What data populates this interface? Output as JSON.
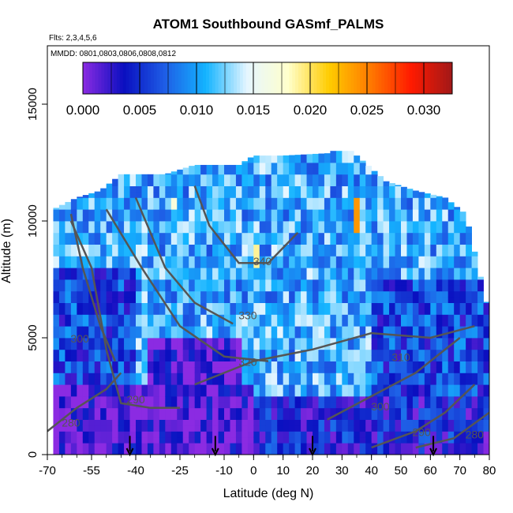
{
  "chart_data": {
    "type": "heatmap",
    "title": "ATOM1 Southbound GASmf_PALMS",
    "flights_note": "Flts: 2,3,4,5,6",
    "dates_note": "MMDD: 0801,0803,0806,0808,0812",
    "xlabel": "Latitude (deg N)",
    "ylabel": "Altitude (m)",
    "xlim": [
      -70,
      80
    ],
    "ylim": [
      0,
      17500
    ],
    "x_ticks": [
      -70,
      -55,
      -40,
      -25,
      -10,
      0,
      10,
      20,
      30,
      40,
      50,
      60,
      70,
      80
    ],
    "y_ticks": [
      0,
      5000,
      10000,
      15000
    ],
    "colorbar": {
      "range": [
        0.0,
        0.0325
      ],
      "ticks": [
        "0.000",
        "0.005",
        "0.010",
        "0.015",
        "0.020",
        "0.025",
        "0.030"
      ],
      "colors": [
        "#8b2be2",
        "#0a0fc0",
        "#1e5ee6",
        "#14b4ff",
        "#e6f6ff",
        "#ffffcc",
        "#ffcc00",
        "#ff7a00",
        "#ff1a00",
        "#a01818"
      ]
    },
    "data_extent": {
      "lat_range": [
        -68,
        80
      ],
      "top_altitude_by_latitude": [
        [
          -68,
          10500
        ],
        [
          -60,
          11000
        ],
        [
          -52,
          11300
        ],
        [
          -45,
          12000
        ],
        [
          -30,
          12000
        ],
        [
          -20,
          12400
        ],
        [
          -5,
          12400
        ],
        [
          0,
          12800
        ],
        [
          10,
          12800
        ],
        [
          25,
          12900
        ],
        [
          30,
          13400
        ],
        [
          35,
          12800
        ],
        [
          45,
          11700
        ],
        [
          55,
          11300
        ],
        [
          65,
          11000
        ],
        [
          72,
          10300
        ],
        [
          80,
          6000
        ]
      ]
    },
    "field_regions": [
      {
        "lat": [
          -68,
          80
        ],
        "alt": [
          0,
          13000
        ],
        "value": 0.0105
      },
      {
        "lat": [
          -68,
          0
        ],
        "alt": [
          0,
          3000
        ],
        "value": 0.001
      },
      {
        "lat": [
          -35,
          -5
        ],
        "alt": [
          2000,
          5000
        ],
        "value": 0.001
      },
      {
        "lat": [
          0,
          80
        ],
        "alt": [
          0,
          2500
        ],
        "value": 0.004
      },
      {
        "lat": [
          40,
          80
        ],
        "alt": [
          2500,
          7500
        ],
        "value": 0.006
      },
      {
        "lat": [
          -68,
          -40
        ],
        "alt": [
          3000,
          8000
        ],
        "value": 0.006
      },
      {
        "lat": [
          34,
          36
        ],
        "alt": [
          9500,
          11000
        ],
        "value": 0.024
      },
      {
        "lat": [
          0,
          2
        ],
        "alt": [
          8000,
          9000
        ],
        "value": 0.019
      },
      {
        "lat": [
          -28,
          -26
        ],
        "alt": [
          10400,
          11000
        ],
        "value": 0.017
      }
    ],
    "contours": [
      {
        "label": "280",
        "label_at": [
          -62,
          1200
        ],
        "points": [
          [
            -70,
            1000
          ],
          [
            -60,
            2000
          ],
          [
            -50,
            2800
          ],
          [
            -45,
            3500
          ]
        ]
      },
      {
        "label": "290",
        "label_at": [
          -40,
          2200
        ],
        "points": [
          [
            -62,
            10000
          ],
          [
            -55,
            8000
          ],
          [
            -50,
            4500
          ],
          [
            -45,
            2200
          ],
          [
            -35,
            2000
          ],
          [
            -25,
            2000
          ]
        ]
      },
      {
        "label": "300",
        "label_at": [
          -59,
          4800
        ],
        "points": [
          [
            -62,
            10300
          ],
          [
            -58,
            8000
          ],
          [
            -52,
            5500
          ],
          [
            -47,
            4000
          ]
        ]
      },
      {
        "label": "310",
        "label_at": [
          50,
          4000
        ],
        "points": [
          [
            -20,
            3000
          ],
          [
            0,
            4000
          ],
          [
            20,
            4500
          ],
          [
            40,
            5200
          ],
          [
            60,
            5000
          ],
          [
            75,
            5500
          ]
        ]
      },
      {
        "label": "320",
        "label_at": [
          -2,
          3800
        ],
        "points": [
          [
            -50,
            10500
          ],
          [
            -38,
            8000
          ],
          [
            -25,
            5500
          ],
          [
            -10,
            4200
          ],
          [
            5,
            4000
          ]
        ]
      },
      {
        "label": "330",
        "label_at": [
          -2,
          5800
        ],
        "points": [
          [
            -40,
            11000
          ],
          [
            -30,
            8000
          ],
          [
            -20,
            6500
          ],
          [
            -7,
            5600
          ]
        ]
      },
      {
        "label": "340",
        "label_at": [
          3,
          8100
        ],
        "points": [
          [
            -20,
            11500
          ],
          [
            -15,
            9800
          ],
          [
            -5,
            8200
          ],
          [
            5,
            8200
          ],
          [
            15,
            9500
          ]
        ]
      },
      {
        "label": "280",
        "label_at": [
          75,
          700
        ],
        "points": [
          [
            55,
            300
          ],
          [
            68,
            700
          ],
          [
            80,
            1800
          ]
        ]
      },
      {
        "label": "290",
        "label_at": [
          57,
          800
        ],
        "points": [
          [
            40,
            300
          ],
          [
            55,
            1000
          ],
          [
            65,
            1800
          ],
          [
            75,
            3000
          ]
        ]
      },
      {
        "label": "300",
        "label_at": [
          43,
          1900
        ],
        "points": [
          [
            25,
            1500
          ],
          [
            40,
            2500
          ],
          [
            55,
            3500
          ],
          [
            70,
            5000
          ]
        ]
      }
    ],
    "arrows_at_latitude": [
      -42,
      -13,
      20,
      61
    ],
    "grid": false,
    "legend": "colorbar top"
  }
}
